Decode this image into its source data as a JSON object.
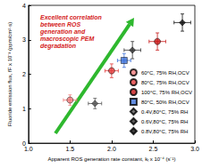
{
  "chart_data": {
    "type": "scatter",
    "annotation": "Excellent correlation between ROS generation and macroscopic PEM degradation",
    "x_label": "Apparent ROS generation rate constant, kₜ x 10⁻⁴ (s⁻¹)",
    "y_label": "Fluoride emission flux, fF x 10⁻³ (ppm/cm²·s)",
    "xlim": [
      1.0,
      3.0
    ],
    "xticks": [
      {
        "value": 1.0,
        "label": "1.0"
      },
      {
        "value": 1.5,
        "label": "1.5"
      },
      {
        "value": 2.0,
        "label": "2.0"
      },
      {
        "value": 2.5,
        "label": "2.5"
      },
      {
        "value": 3.0,
        "label": "3.0"
      }
    ],
    "ylim": [
      0,
      4
    ],
    "yticks": [
      0,
      1,
      2,
      3,
      4
    ],
    "grid": false,
    "legend": "bottom-right",
    "series": [
      {
        "name": "60°C, 75% RH,OCV",
        "color": "#f07a7a",
        "marker": "circle",
        "x": [
          1.5
        ],
        "values": [
          1.25
        ],
        "x_error": [
          0.08
        ],
        "y_error": [
          0.15
        ]
      },
      {
        "name": "80°C, 75% RH,OCV",
        "color": "#e23b3b",
        "marker": "circle",
        "x": [
          2.0
        ],
        "values": [
          2.1
        ],
        "x_error": [
          0.08
        ],
        "y_error": [
          0.2
        ]
      },
      {
        "name": "100°C, 75% RH,OCV",
        "color": "#c81818",
        "marker": "circle",
        "x": [
          2.55
        ],
        "values": [
          2.95
        ],
        "x_error": [
          0.1
        ],
        "y_error": [
          0.25
        ]
      },
      {
        "name": "80°C, 50% RH,OCV",
        "color": "#3a6fd8",
        "marker": "square",
        "x": [
          2.15
        ],
        "values": [
          2.4
        ],
        "x_error": [
          0.08
        ],
        "y_error": [
          0.2
        ]
      },
      {
        "name": "0.4V,80°C, 75% RH",
        "color": "#555555",
        "marker": "diamond",
        "x": [
          1.8
        ],
        "values": [
          1.15
        ],
        "x_error": [
          0.08
        ],
        "y_error": [
          0.15
        ]
      },
      {
        "name": "0.6V,80°C, 75% RH",
        "color": "#333333",
        "marker": "diamond",
        "x": [
          2.25
        ],
        "values": [
          2.7
        ],
        "x_error": [
          0.1
        ],
        "y_error": [
          0.25
        ]
      },
      {
        "name": "0.8V,80°C, 75% RH",
        "color": "#111111",
        "marker": "diamond",
        "x": [
          2.85
        ],
        "values": [
          3.5
        ],
        "x_error": [
          0.1
        ],
        "y_error": [
          0.25
        ]
      }
    ]
  }
}
